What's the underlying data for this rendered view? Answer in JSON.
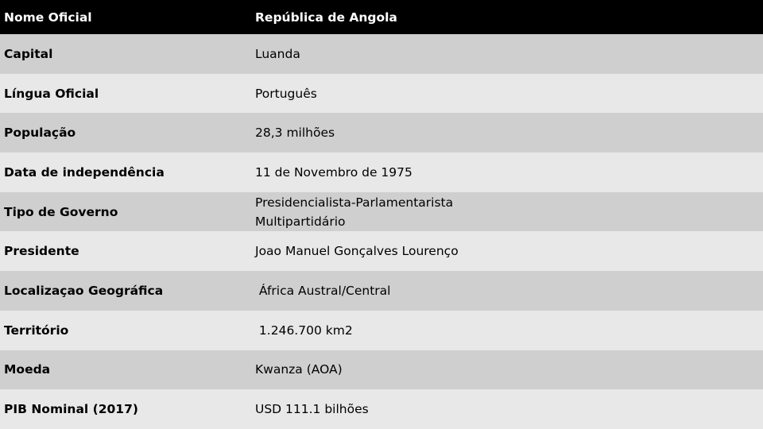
{
  "header": {
    "key": "Nome Oficial",
    "value": "República de Angola"
  },
  "rows": [
    {
      "key": "Capital",
      "value": "Luanda"
    },
    {
      "key": "Língua Oficial",
      "value": "Português"
    },
    {
      "key": "População",
      "value": "28,3 milhões"
    },
    {
      "key": "Data de independência",
      "value": "11 de Novembro de 1975"
    },
    {
      "key": "Tipo de Governo",
      "value_line1": "Presidencialista-Parlamentarista",
      "value_line2": "Multipartidário"
    },
    {
      "key": "Presidente",
      "value": "Joao Manuel Gonçalves Lourenço"
    },
    {
      "key": "Localizaçao Geográfica",
      "value": " África Austral/Central"
    },
    {
      "key": "Território",
      "value": " 1.246.700 km2"
    },
    {
      "key": "Moeda",
      "value": "Kwanza (AOA)"
    },
    {
      "key": "PIB Nominal (2017)",
      "value": "USD 111.1 bilhões"
    }
  ]
}
